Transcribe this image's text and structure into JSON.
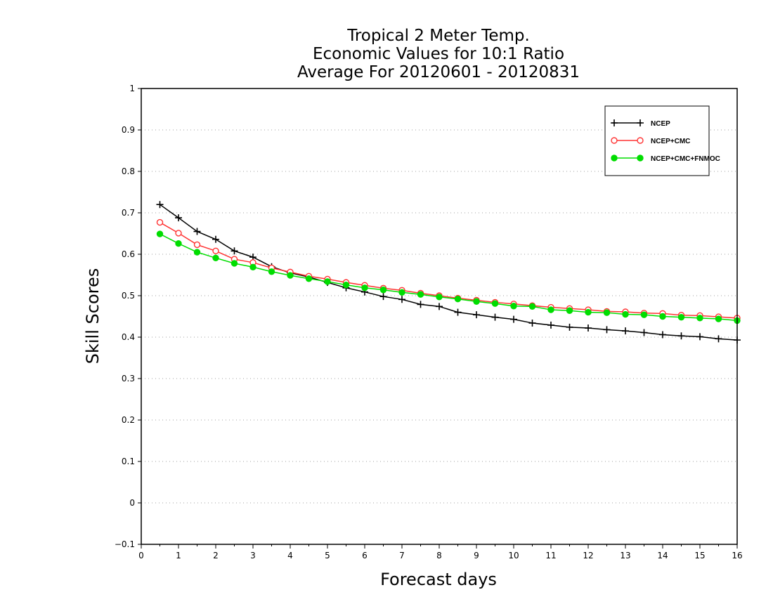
{
  "chart_data": {
    "type": "line",
    "title_lines": [
      "Tropical 2 Meter Temp.",
      "Economic Values for 10:1 Ratio",
      "Average For 20120601 - 20120831"
    ],
    "xlabel": "Forecast days",
    "ylabel": "Skill Scores",
    "xlim": [
      0,
      16
    ],
    "ylim": [
      -0.1,
      1
    ],
    "x_ticks": [
      "0",
      "1",
      "2",
      "3",
      "4",
      "5",
      "6",
      "7",
      "8",
      "9",
      "10",
      "11",
      "12",
      "13",
      "14",
      "15",
      "16"
    ],
    "y_ticks": [
      "−0.1",
      "0",
      "0.1",
      "0.2",
      "0.3",
      "0.4",
      "0.5",
      "0.6",
      "0.7",
      "0.8",
      "0.9",
      "1"
    ],
    "y_tick_values": [
      -0.1,
      0,
      0.1,
      0.2,
      0.3,
      0.4,
      0.5,
      0.6,
      0.7,
      0.8,
      0.9,
      1.0
    ],
    "grid": "horizontal dotted",
    "legend_placement": "top-right",
    "x": [
      0.5,
      1,
      1.5,
      2,
      2.5,
      3,
      3.5,
      4,
      4.5,
      5,
      5.5,
      6,
      6.5,
      7,
      7.5,
      8,
      8.5,
      9,
      9.5,
      10,
      10.5,
      11,
      11.5,
      12,
      12.5,
      13,
      13.5,
      14,
      14.5,
      15,
      15.5,
      16
    ],
    "series": [
      {
        "name": "NCEP",
        "color": "#000000",
        "marker": "plus",
        "values": [
          0.72,
          0.688,
          0.655,
          0.636,
          0.608,
          0.593,
          0.57,
          0.555,
          0.545,
          0.532,
          0.519,
          0.509,
          0.498,
          0.491,
          0.479,
          0.474,
          0.46,
          0.454,
          0.448,
          0.443,
          0.434,
          0.429,
          0.424,
          0.422,
          0.418,
          0.415,
          0.411,
          0.406,
          0.403,
          0.401,
          0.396,
          0.393
        ]
      },
      {
        "name": "NCEP+CMC",
        "color": "#ff3333",
        "marker": "open-circle",
        "values": [
          0.677,
          0.651,
          0.623,
          0.608,
          0.588,
          0.58,
          0.567,
          0.557,
          0.547,
          0.54,
          0.532,
          0.525,
          0.518,
          0.513,
          0.506,
          0.5,
          0.494,
          0.489,
          0.484,
          0.48,
          0.476,
          0.472,
          0.469,
          0.466,
          0.462,
          0.461,
          0.458,
          0.457,
          0.453,
          0.452,
          0.449,
          0.446
        ]
      },
      {
        "name": "NCEP+CMC+FNMOC",
        "color": "#00dd00",
        "marker": "filled-circle",
        "values": [
          0.649,
          0.626,
          0.605,
          0.591,
          0.578,
          0.569,
          0.558,
          0.549,
          0.541,
          0.534,
          0.526,
          0.519,
          0.514,
          0.508,
          0.503,
          0.497,
          0.492,
          0.486,
          0.481,
          0.475,
          0.474,
          0.466,
          0.464,
          0.46,
          0.459,
          0.455,
          0.454,
          0.45,
          0.448,
          0.446,
          0.444,
          0.44
        ]
      }
    ]
  }
}
